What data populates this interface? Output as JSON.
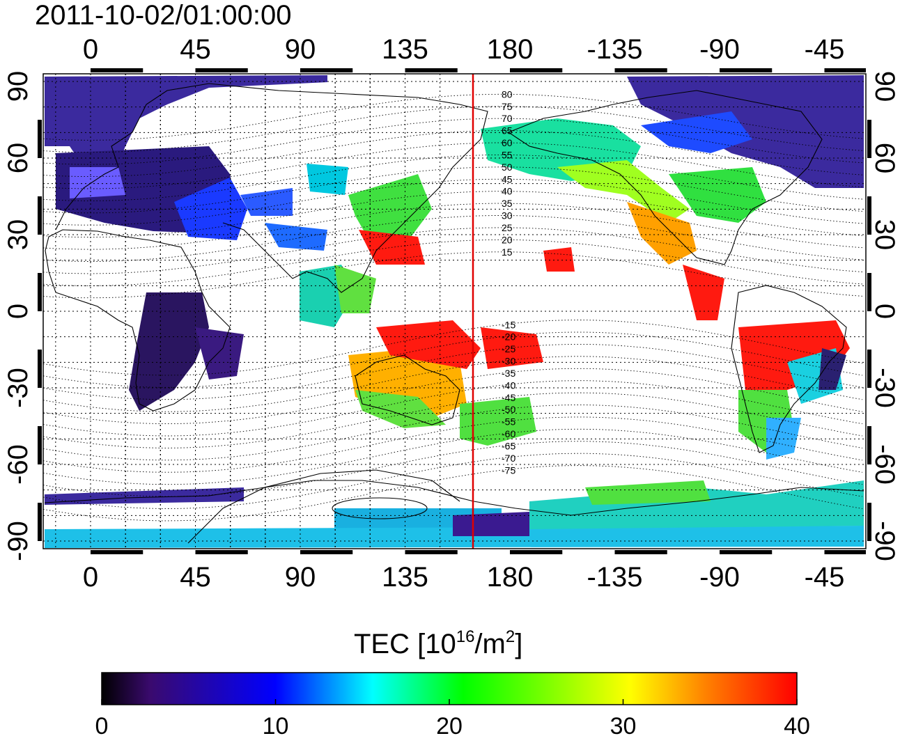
{
  "title": "2011-10-02/01:00:00",
  "colorbar": {
    "label_prefix": "TEC  [10",
    "label_exp1": "16",
    "label_mid": "/m",
    "label_exp2": "2",
    "label_suffix": "]",
    "min": 0,
    "max": 40,
    "ticks": [
      "0",
      "10",
      "20",
      "30",
      "40"
    ],
    "colors": [
      "#000000",
      "#3a0a6e",
      "#0000ff",
      "#00ffff",
      "#00ff00",
      "#ffff00",
      "#ff8000",
      "#ff0000"
    ]
  },
  "map": {
    "top_lon_labels": [
      "0",
      "45",
      "90",
      "135",
      "180",
      "-135",
      "-90",
      "-45"
    ],
    "bottom_lon_labels": [
      "0",
      "45",
      "90",
      "135",
      "180",
      "-135",
      "-90",
      "-45"
    ],
    "left_lat_labels": [
      "90",
      "60",
      "30",
      "0",
      "-30",
      "-60",
      "-90"
    ],
    "right_lat_labels": [
      "90",
      "60",
      "30",
      "0",
      "-30",
      "-60",
      "-90"
    ],
    "magnetic_lat_labels": [
      "80",
      "75",
      "70",
      "65",
      "60",
      "55",
      "50",
      "45",
      "40",
      "35",
      "30",
      "25",
      "20",
      "15",
      "-15",
      "-20",
      "-25",
      "-30",
      "-35",
      "-40",
      "-45",
      "-50",
      "-55",
      "-60",
      "-65",
      "-70",
      "-75"
    ],
    "meridian_color": "#e00000"
  }
}
